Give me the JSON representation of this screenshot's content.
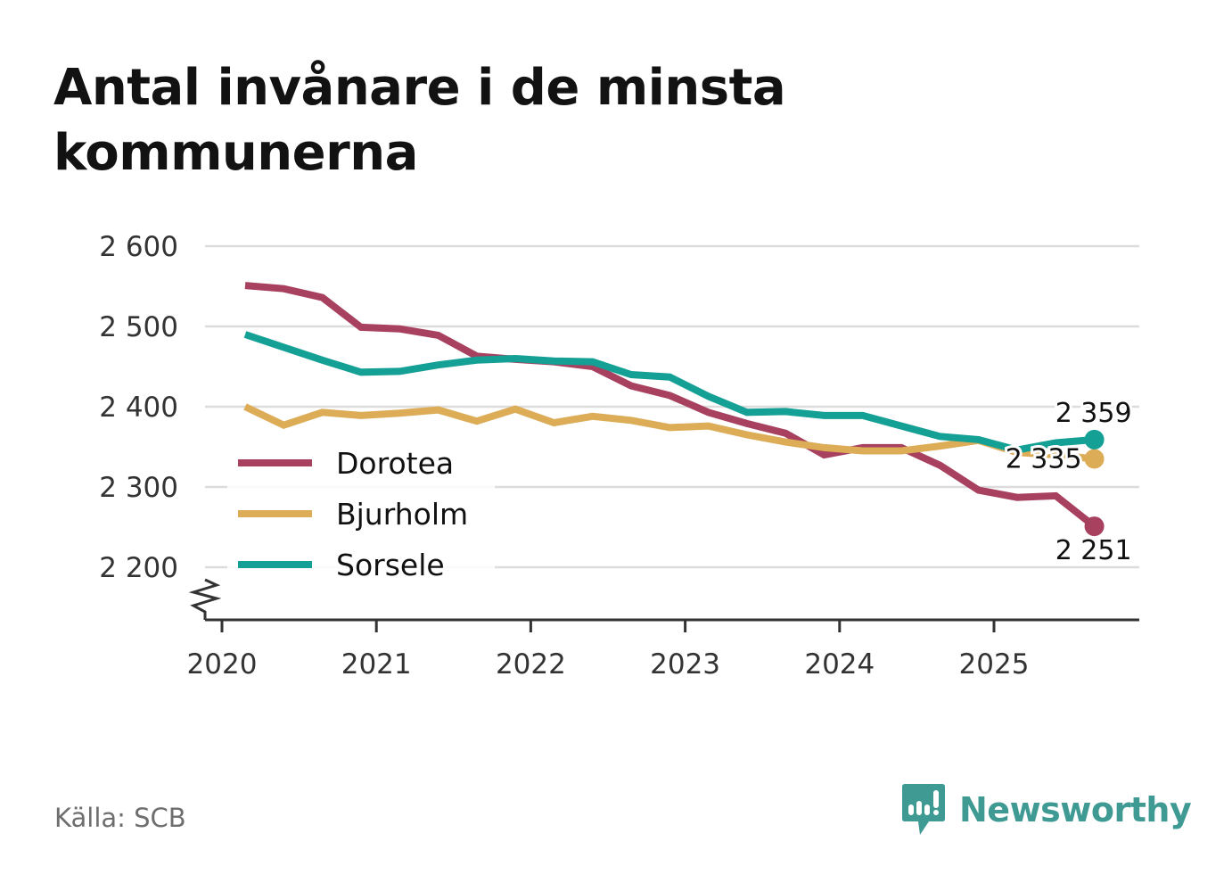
{
  "title": "Antal invånare i de minsta kommunerna",
  "source": "Källa: SCB",
  "brand": {
    "name": "Newsworthy",
    "icon": "newsworthy-logo-icon",
    "color": "#3e9a93"
  },
  "chart_data": {
    "type": "line",
    "title": "Antal invånare i de minsta kommunerna",
    "xlabel": "",
    "ylabel": "",
    "ylim": [
      2135,
      2600
    ],
    "xlim": [
      2019.9,
      2025.95
    ],
    "y_ticks": [
      2200,
      2300,
      2400,
      2500,
      2600
    ],
    "y_tick_labels": [
      "2 200",
      "2 300",
      "2 400",
      "2 500",
      "2 600"
    ],
    "x_ticks": [
      2020,
      2021,
      2022,
      2023,
      2024,
      2025
    ],
    "x_tick_labels": [
      "2020",
      "2021",
      "2022",
      "2023",
      "2024",
      "2025"
    ],
    "y_axis_break": true,
    "grid": "horizontal",
    "legend_position": "left-middle",
    "x": [
      2020.15,
      2020.4,
      2020.65,
      2020.9,
      2021.15,
      2021.4,
      2021.65,
      2021.9,
      2022.15,
      2022.4,
      2022.65,
      2022.9,
      2023.15,
      2023.4,
      2023.65,
      2023.9,
      2024.15,
      2024.4,
      2024.65,
      2024.9,
      2025.15,
      2025.4,
      2025.65
    ],
    "series": [
      {
        "name": "Dorotea",
        "color": "#a8405f",
        "values": [
          2551,
          2547,
          2536,
          2499,
          2497,
          2489,
          2463,
          2459,
          2456,
          2450,
          2426,
          2414,
          2393,
          2379,
          2367,
          2340,
          2349,
          2349,
          2327,
          2296,
          2287,
          2289,
          2251
        ],
        "end_label": "2 251",
        "end_label_position": "below"
      },
      {
        "name": "Bjurholm",
        "color": "#dcac57",
        "values": [
          2400,
          2377,
          2393,
          2389,
          2392,
          2396,
          2382,
          2397,
          2380,
          2388,
          2383,
          2374,
          2376,
          2365,
          2356,
          2349,
          2345,
          2345,
          2351,
          2358,
          2343,
          2340,
          2335
        ],
        "end_label": "2 335",
        "end_label_position": "left"
      },
      {
        "name": "Sorsele",
        "color": "#14a095",
        "values": [
          2490,
          2474,
          2458,
          2443,
          2444,
          2452,
          2458,
          2460,
          2457,
          2456,
          2440,
          2437,
          2413,
          2393,
          2394,
          2389,
          2389,
          2376,
          2363,
          2359,
          2346,
          2355,
          2359
        ],
        "end_label": "2 359",
        "end_label_position": "above"
      }
    ]
  }
}
